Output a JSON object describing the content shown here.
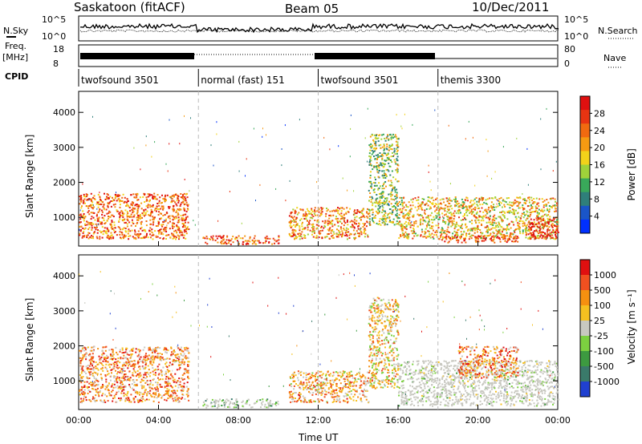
{
  "header": {
    "radar": "Saskatoon (fitACF)",
    "beam": "Beam 05",
    "date": "10/Dec/2011"
  },
  "top_panel": {
    "left_label": "N.Sky",
    "right_label": "N.Search",
    "left_ticks": [
      "10^5",
      "10^0"
    ],
    "right_ticks": [
      "10^5",
      "10^0"
    ]
  },
  "freq_panel": {
    "left_label_1": "Freq.",
    "left_label_2": "[MHz]",
    "right_label": "Nave",
    "left_ticks": [
      "18",
      "8"
    ],
    "right_ticks": [
      "80",
      "0"
    ]
  },
  "cpid": {
    "label": "CPID",
    "segments": [
      {
        "name": "twofsound 3501",
        "start_hour": 0,
        "end_hour": 6
      },
      {
        "name": "normal (fast) 151",
        "start_hour": 6,
        "end_hour": 12
      },
      {
        "name": "twofsound 3501",
        "start_hour": 12,
        "end_hour": 18
      },
      {
        "name": "themis 3300",
        "start_hour": 18,
        "end_hour": 24
      }
    ]
  },
  "chart_data": [
    {
      "type": "heatmap",
      "title": "",
      "xlabel": "Time UT",
      "ylabel": "Slant Range [km]",
      "xlim": [
        0,
        24
      ],
      "ylim": [
        180,
        4600
      ],
      "x_ticks": [
        "00:00",
        "04:00",
        "08:00",
        "12:00",
        "16:00",
        "20:00",
        "00:00"
      ],
      "y_ticks": [
        "1000",
        "2000",
        "3000",
        "4000"
      ],
      "colorbar": {
        "label": "Power [dB]",
        "ticks": [
          "28",
          "24",
          "20",
          "16",
          "12",
          "8",
          "4"
        ],
        "colors": [
          "#0030ff",
          "#1a55c8",
          "#2f7f7a",
          "#39a85a",
          "#9fd23a",
          "#f2d21a",
          "#f59a12",
          "#f06a10",
          "#e83412",
          "#e01010"
        ]
      },
      "echo_regions": [
        {
          "t_start": 0.0,
          "t_end": 5.5,
          "r_min": 400,
          "r_max": 1700,
          "level": 0.75
        },
        {
          "t_start": 6.2,
          "t_end": 10.0,
          "r_min": 250,
          "r_max": 500,
          "level": 0.8
        },
        {
          "t_start": 10.5,
          "t_end": 14.5,
          "r_min": 400,
          "r_max": 1300,
          "level": 0.7
        },
        {
          "t_start": 14.5,
          "t_end": 16.0,
          "r_min": 800,
          "r_max": 3400,
          "level": 0.45
        },
        {
          "t_start": 16.0,
          "t_end": 24.0,
          "r_min": 400,
          "r_max": 1600,
          "level": 0.6
        },
        {
          "t_start": 18.0,
          "t_end": 22.0,
          "r_min": 300,
          "r_max": 500,
          "level": 0.85
        },
        {
          "t_start": 22.5,
          "t_end": 24.0,
          "r_min": 400,
          "r_max": 1000,
          "level": 0.95
        }
      ]
    },
    {
      "type": "heatmap",
      "title": "",
      "xlabel": "Time UT",
      "ylabel": "Slant Range [km]",
      "xlim": [
        0,
        24
      ],
      "ylim": [
        180,
        4600
      ],
      "x_ticks": [
        "00:00",
        "04:00",
        "08:00",
        "12:00",
        "16:00",
        "20:00",
        "00:00"
      ],
      "y_ticks": [
        "1000",
        "2000",
        "3000",
        "4000"
      ],
      "colorbar": {
        "label": "Velocity [m s⁻¹]",
        "ticks": [
          "1000",
          "500",
          "100",
          "25",
          "-25",
          "-100",
          "-500",
          "-1000"
        ],
        "colors": [
          "#2040d0",
          "#3a7a6a",
          "#3d9a40",
          "#7cd040",
          "#c8c8c0",
          "#f5c020",
          "#f59010",
          "#f05020",
          "#e01010"
        ]
      },
      "echo_regions": [
        {
          "t_start": 0.0,
          "t_end": 5.5,
          "r_min": 400,
          "r_max": 2000,
          "level": 0.7
        },
        {
          "t_start": 6.2,
          "t_end": 10.0,
          "r_min": 250,
          "r_max": 500,
          "level": 0.3
        },
        {
          "t_start": 10.5,
          "t_end": 14.5,
          "r_min": 400,
          "r_max": 1300,
          "level": 0.65
        },
        {
          "t_start": 14.5,
          "t_end": 16.0,
          "r_min": 800,
          "r_max": 3400,
          "level": 0.6
        },
        {
          "t_start": 16.0,
          "t_end": 24.0,
          "r_min": 300,
          "r_max": 1600,
          "level": 0.45
        },
        {
          "t_start": 19.0,
          "t_end": 22.0,
          "r_min": 1100,
          "r_max": 2000,
          "level": 0.72
        }
      ]
    }
  ]
}
